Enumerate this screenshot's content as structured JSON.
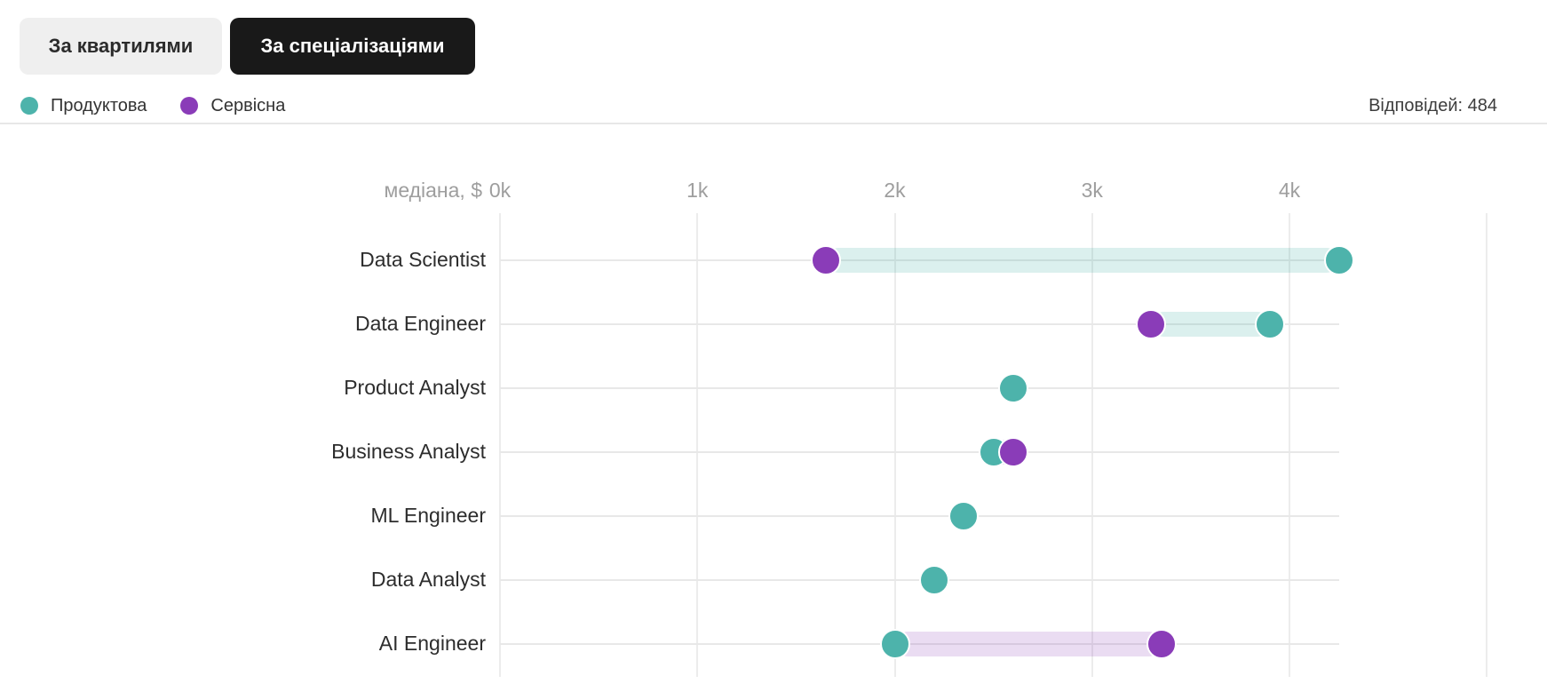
{
  "header": {
    "toggle": {
      "quartiles": "За квартилями",
      "specializations": "За спеціалізаціями"
    },
    "legend": [
      {
        "name": "Продуктова",
        "color": "#4db3ab"
      },
      {
        "name": "Сервісна",
        "color": "#8a3cb8"
      }
    ],
    "responses_text": "Відповідей: 484"
  },
  "colors": {
    "product": "#4db3ab",
    "service": "#8a3cb8",
    "product_band": "rgba(77,179,171,0.20)",
    "service_band": "rgba(138,60,184,0.18)",
    "v_gridline": "#ececec",
    "row_line": "#e8e8e8",
    "axis_text": "#9e9e9e",
    "row_text": "#2d2d2d"
  },
  "chart_data": {
    "type": "scatter",
    "subtype": "dumbbell",
    "title": "",
    "xlabel": "медіана, $",
    "xticks": [
      "0k",
      "1k",
      "2k",
      "3k",
      "4k"
    ],
    "xtick_values_k": [
      0,
      1,
      2,
      3,
      4
    ],
    "xlim_k": [
      0,
      5.3
    ],
    "grid": true,
    "legend_position": "top-left",
    "categories": [
      "Data Scientist",
      "Data Engineer",
      "Product Analyst",
      "Business Analyst",
      "ML Engineer",
      "Data Analyst",
      "AI Engineer"
    ],
    "series": [
      {
        "name": "Продуктова",
        "color": "#4db3ab",
        "values_k_usd": [
          4.25,
          3.9,
          2.6,
          2.5,
          2.35,
          2.2,
          2.0
        ]
      },
      {
        "name": "Сервісна",
        "color": "#8a3cb8",
        "values_k_usd": [
          1.65,
          3.3,
          null,
          2.6,
          null,
          null,
          3.35
        ]
      }
    ]
  }
}
